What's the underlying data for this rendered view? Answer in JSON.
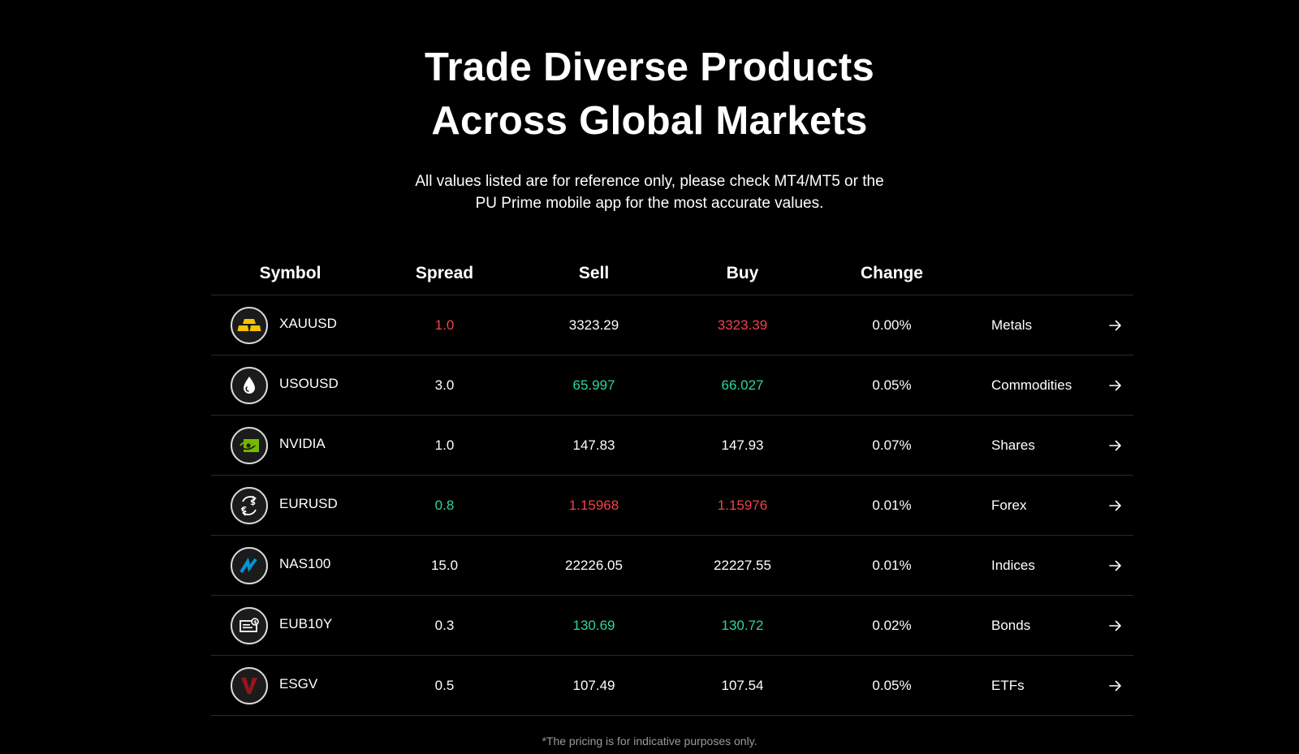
{
  "hero": {
    "title_line1": "Trade Diverse Products",
    "title_line2": "Across Global Markets",
    "subtitle_line1": "All values listed are for reference only, please check MT4/MT5 or the",
    "subtitle_line2": "PU Prime mobile app for the most accurate values."
  },
  "table": {
    "headers": {
      "symbol": "Symbol",
      "spread": "Spread",
      "sell": "Sell",
      "buy": "Buy",
      "change": "Change"
    },
    "rows": [
      {
        "symbol": "XAUUSD",
        "icon": "gold-bars-icon",
        "spread": "1.0",
        "spread_color": "red",
        "sell": "3323.29",
        "sell_color": "white",
        "buy": "3323.39",
        "buy_color": "red",
        "change": "0.00%",
        "category": "Metals"
      },
      {
        "symbol": "USOUSD",
        "icon": "oil-drop-icon",
        "spread": "3.0",
        "spread_color": "white",
        "sell": "65.997",
        "sell_color": "green",
        "buy": "66.027",
        "buy_color": "green",
        "change": "0.05%",
        "category": "Commodities"
      },
      {
        "symbol": "NVIDIA",
        "icon": "nvidia-logo-icon",
        "spread": "1.0",
        "spread_color": "white",
        "sell": "147.83",
        "sell_color": "white",
        "buy": "147.93",
        "buy_color": "white",
        "change": "0.07%",
        "category": "Shares"
      },
      {
        "symbol": "EURUSD",
        "icon": "currency-exchange-icon",
        "spread": "0.8",
        "spread_color": "green",
        "sell": "1.15968",
        "sell_color": "red",
        "buy": "1.15976",
        "buy_color": "red",
        "change": "0.01%",
        "category": "Forex"
      },
      {
        "symbol": "NAS100",
        "icon": "nasdaq-logo-icon",
        "spread": "15.0",
        "spread_color": "white",
        "sell": "22226.05",
        "sell_color": "white",
        "buy": "22227.55",
        "buy_color": "white",
        "change": "0.01%",
        "category": "Indices"
      },
      {
        "symbol": "EUB10Y",
        "icon": "bond-document-icon",
        "spread": "0.3",
        "spread_color": "white",
        "sell": "130.69",
        "sell_color": "green",
        "buy": "130.72",
        "buy_color": "green",
        "change": "0.02%",
        "category": "Bonds"
      },
      {
        "symbol": "ESGV",
        "icon": "vanguard-logo-icon",
        "spread": "0.5",
        "spread_color": "white",
        "sell": "107.49",
        "sell_color": "white",
        "buy": "107.54",
        "buy_color": "white",
        "change": "0.05%",
        "category": "ETFs"
      }
    ]
  },
  "footnote": "*The pricing is for indicative purposes only.",
  "colors": {
    "background": "#000000",
    "red": "#f0414c",
    "green": "#2bd6a0",
    "gold": "#f5c400",
    "nvidia_green": "#76b900",
    "nasdaq_blue": "#0096d6",
    "vanguard_red": "#96151d"
  }
}
